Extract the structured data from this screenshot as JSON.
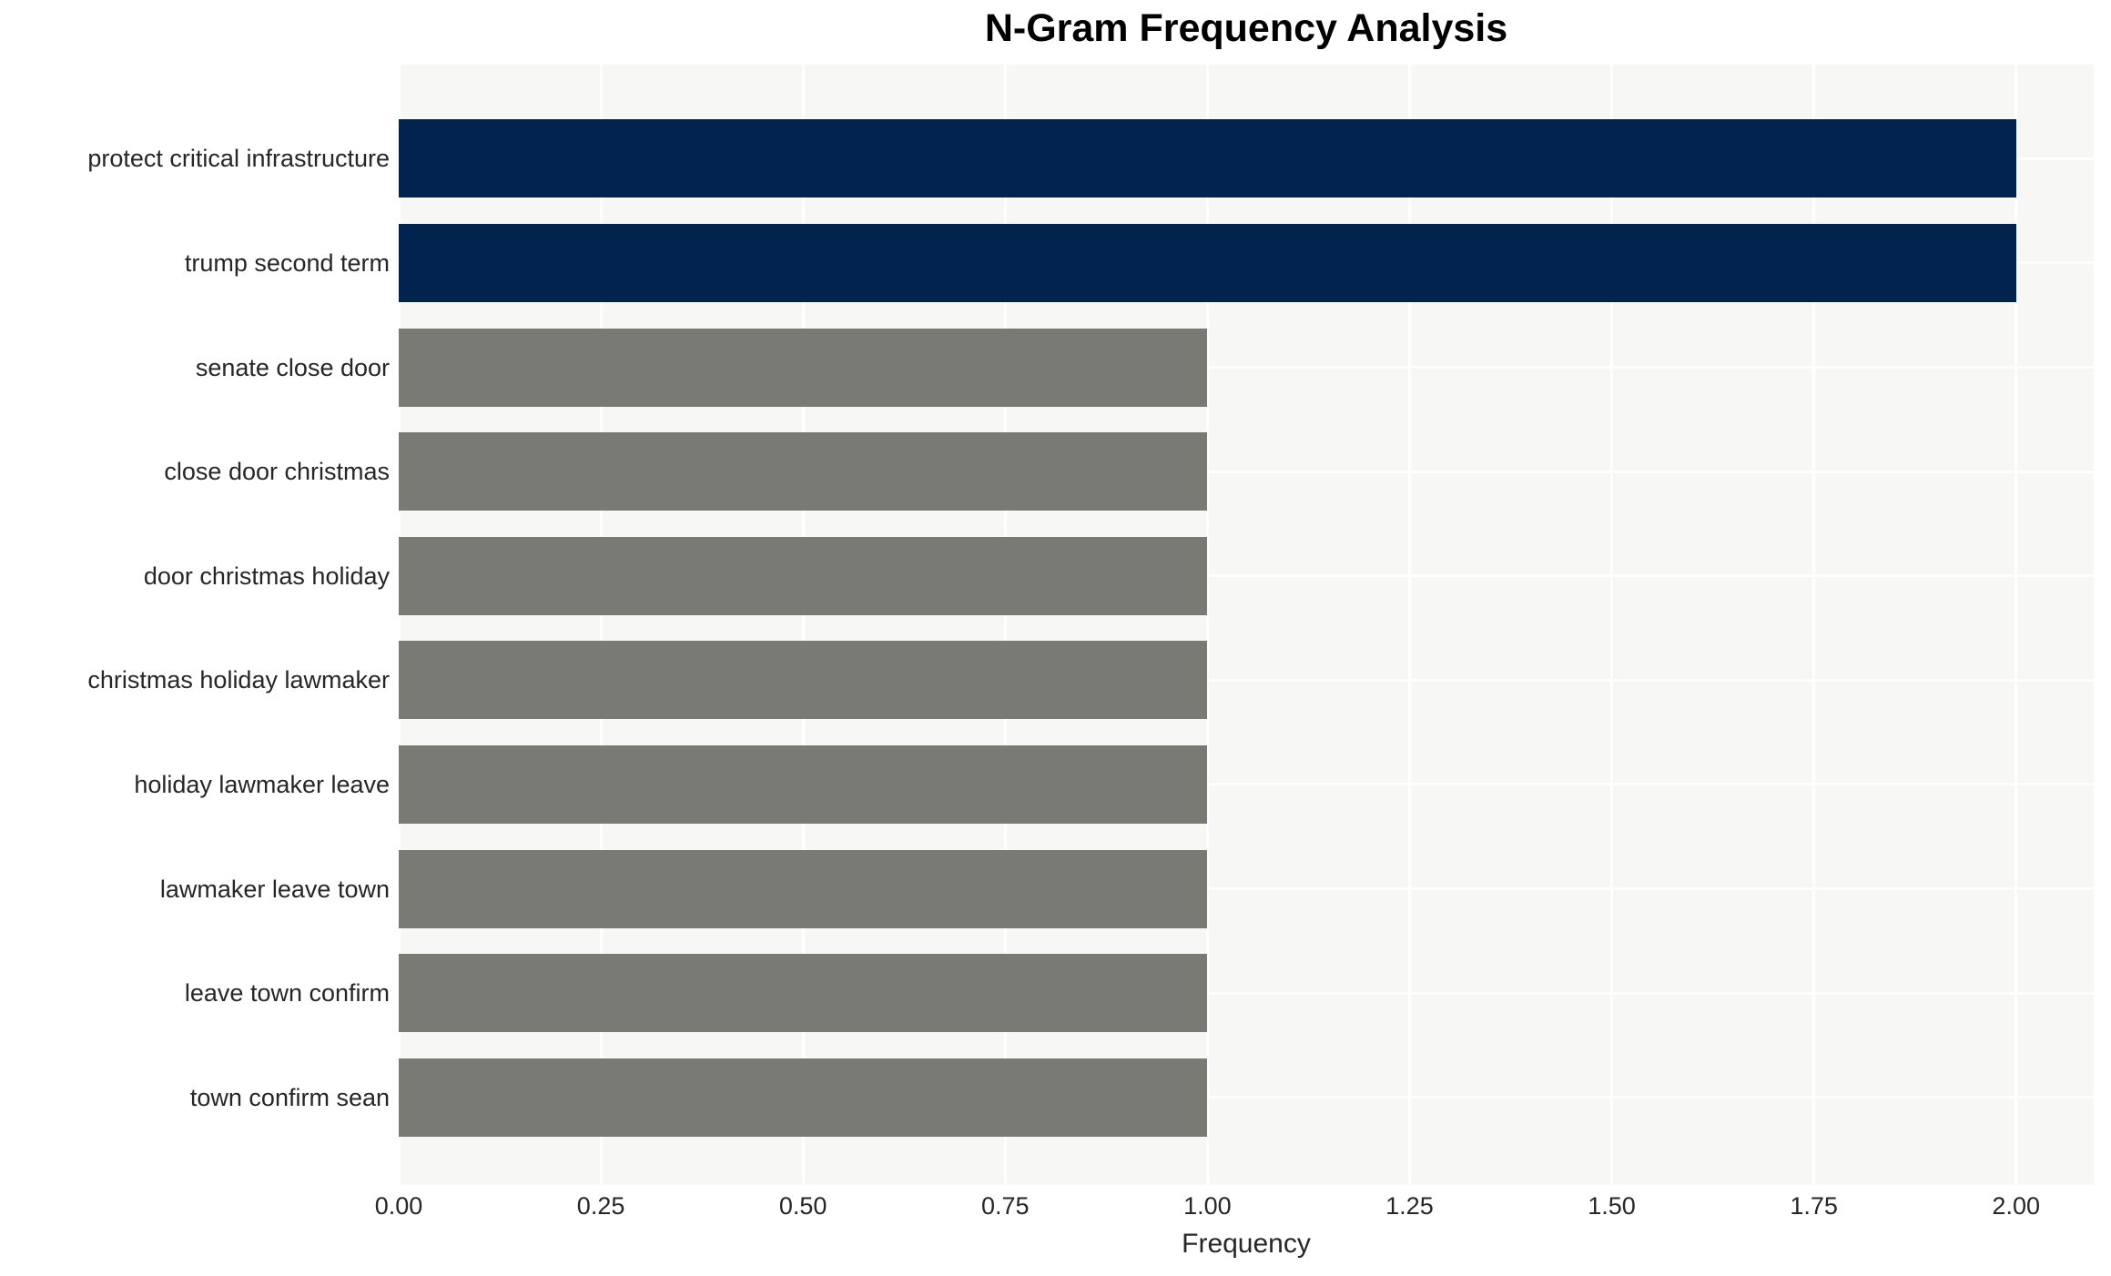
{
  "chart_data": {
    "type": "bar",
    "orientation": "horizontal",
    "title": "N-Gram Frequency Analysis",
    "xlabel": "Frequency",
    "ylabel": "",
    "categories": [
      "protect critical infrastructure",
      "trump second term",
      "senate close door",
      "close door christmas",
      "door christmas holiday",
      "christmas holiday lawmaker",
      "holiday lawmaker leave",
      "lawmaker leave town",
      "leave town confirm",
      "town confirm sean"
    ],
    "values": [
      2,
      2,
      1,
      1,
      1,
      1,
      1,
      1,
      1,
      1
    ],
    "bar_colors": [
      "#02234d",
      "#02234d",
      "#7a7a75",
      "#7a7a75",
      "#7a7a75",
      "#7a7a75",
      "#7a7a75",
      "#7a7a75",
      "#7a7a75",
      "#7a7a75"
    ],
    "xlim": [
      0,
      2.096
    ],
    "xtick_values": [
      0,
      0.25,
      0.5,
      0.75,
      1.0,
      1.25,
      1.5,
      1.75,
      2.0
    ],
    "xtick_labels": [
      "0.00",
      "0.25",
      "0.50",
      "0.75",
      "1.00",
      "1.25",
      "1.50",
      "1.75",
      "2.00"
    ],
    "grid": true,
    "gridline_color": "#ffffff",
    "plot_background": "#f7f7f5",
    "legend": false
  }
}
